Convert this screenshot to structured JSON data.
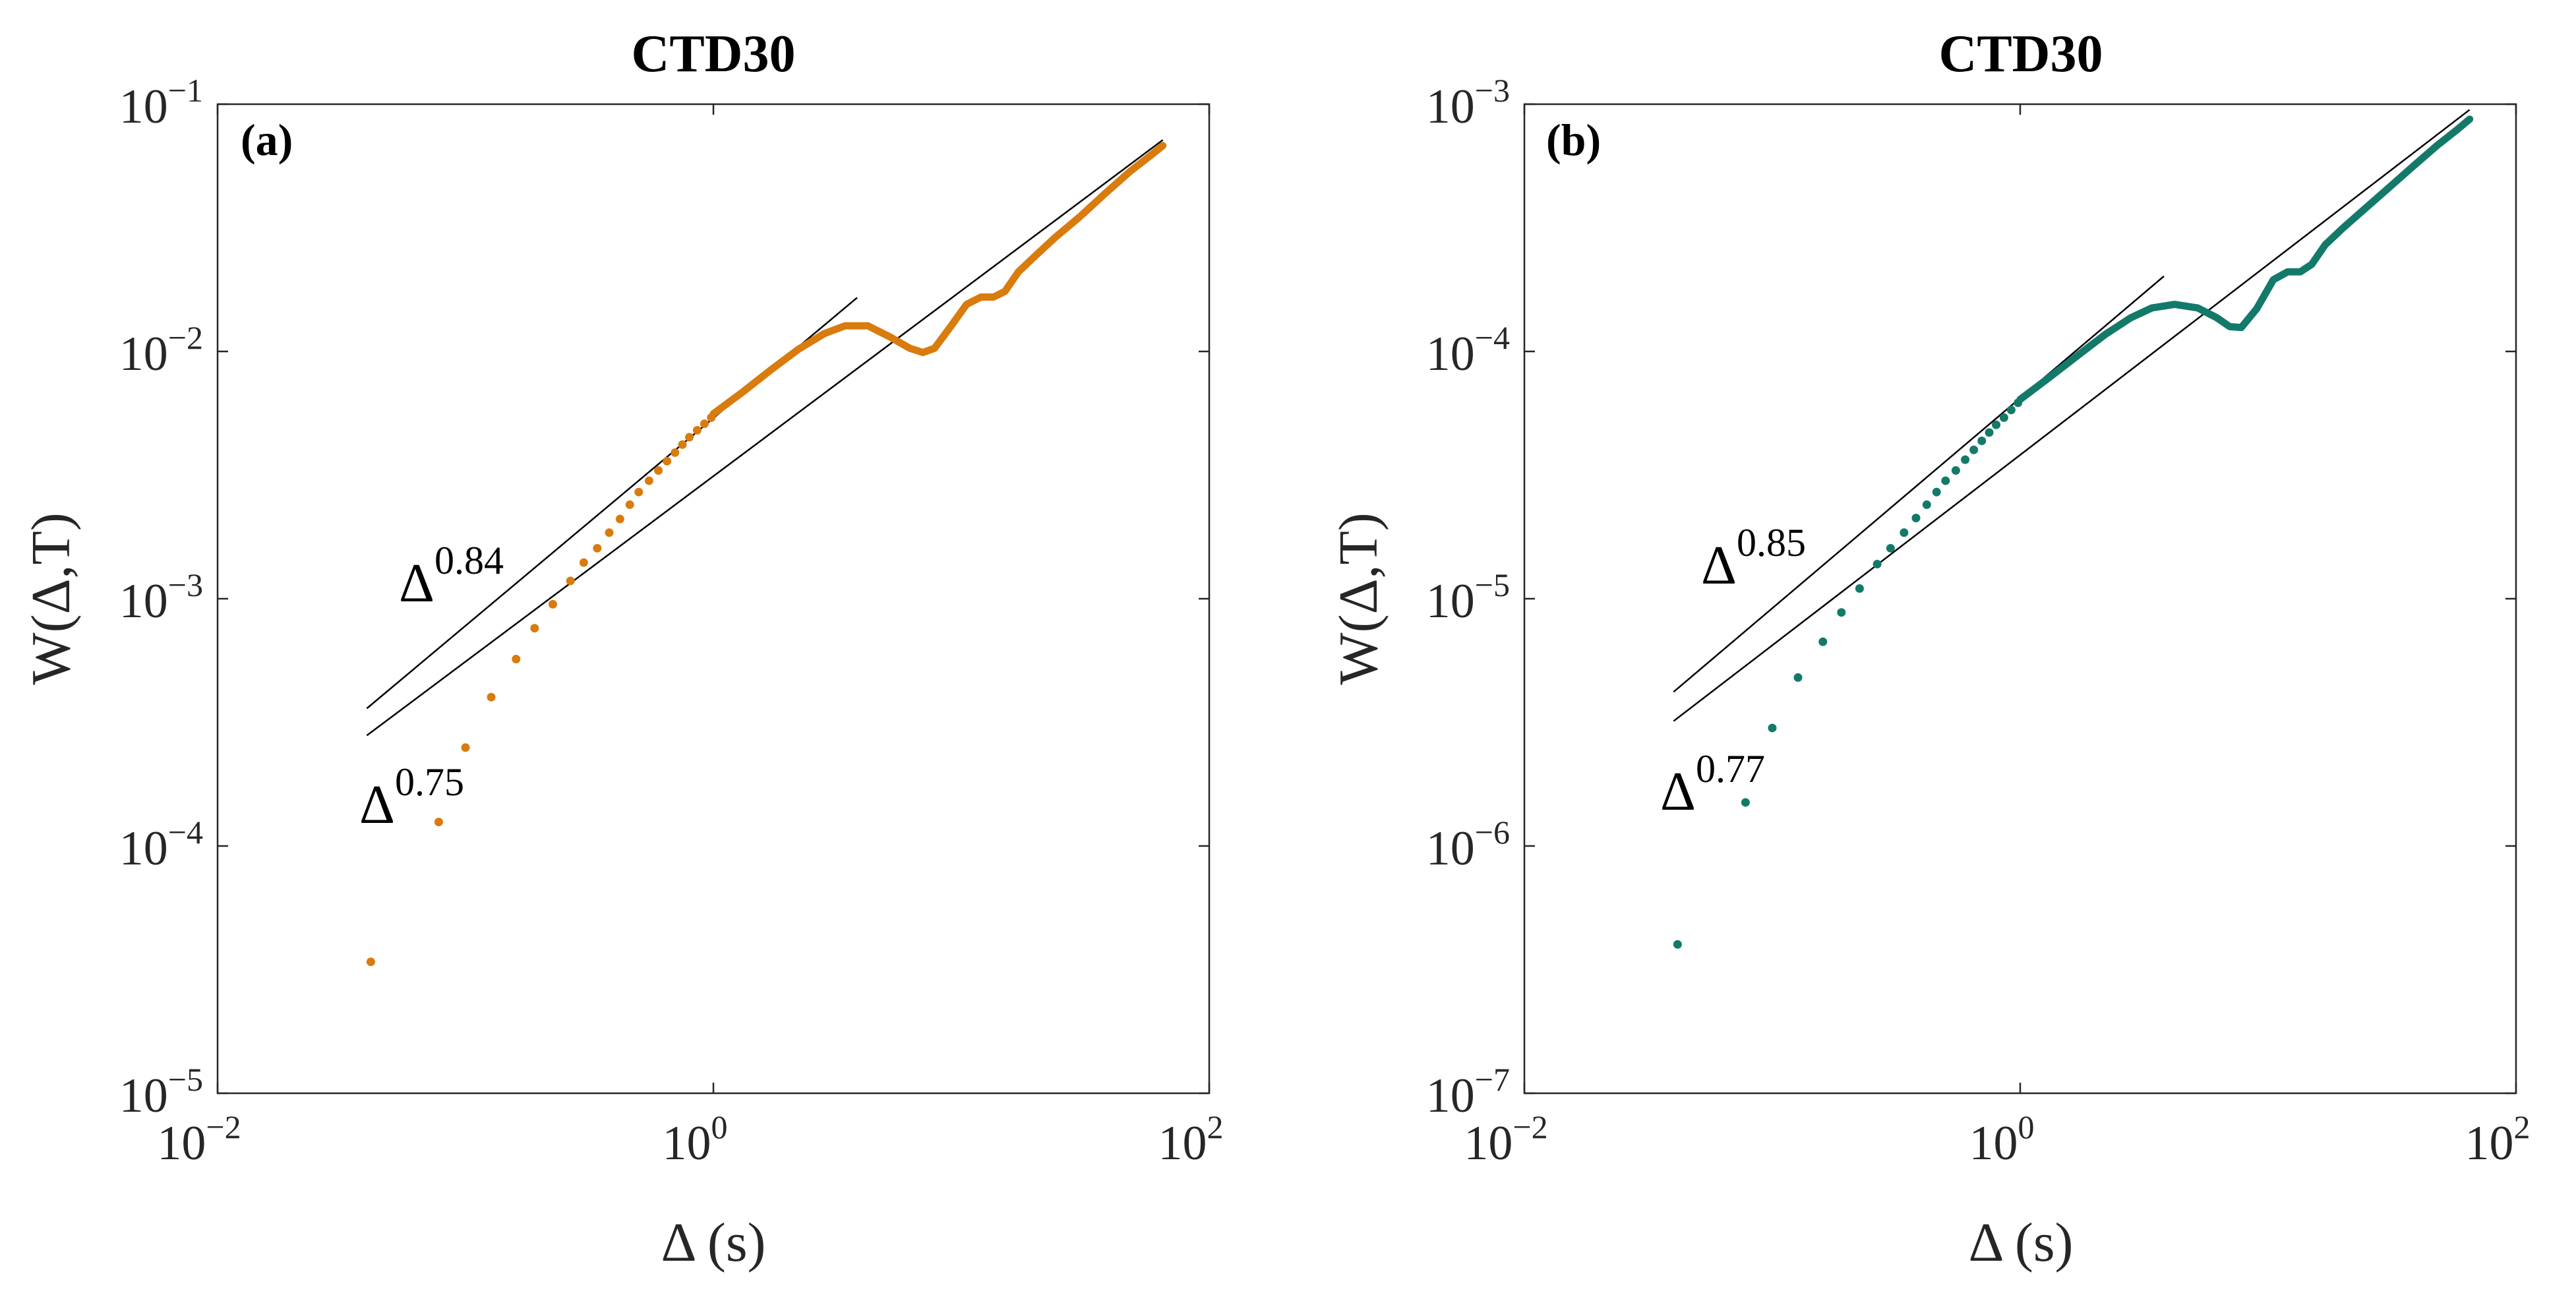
{
  "chart_data": [
    {
      "type": "scatter",
      "title": "CTD30",
      "panel_label": "(a)",
      "xlabel": "Δ (s)",
      "ylabel": "W(Δ,T)",
      "xscale": "log",
      "yscale": "log",
      "xlim": [
        0.01,
        100
      ],
      "ylim": [
        1e-05,
        0.1
      ],
      "x_ticks": [
        {
          "base": "10",
          "exp": "−2"
        },
        {
          "base": "10",
          "exp": "0"
        },
        {
          "base": "10",
          "exp": "2"
        }
      ],
      "y_ticks": [
        {
          "base": "10",
          "exp": "−5"
        },
        {
          "base": "10",
          "exp": "−4"
        },
        {
          "base": "10",
          "exp": "−3"
        },
        {
          "base": "10",
          "exp": "−2"
        },
        {
          "base": "10",
          "exp": "−1"
        }
      ],
      "series_color": "#d97b0d",
      "points": [
        [
          0.0415,
          3.4e-05
        ],
        [
          0.078,
          0.000125
        ],
        [
          0.1,
          0.00025
        ],
        [
          0.127,
          0.0004
        ],
        [
          0.16,
          0.00057
        ],
        [
          0.19,
          0.00076
        ],
        [
          0.225,
          0.00095
        ],
        [
          0.265,
          0.00118
        ],
        [
          0.3,
          0.0014
        ],
        [
          0.34,
          0.0016
        ],
        [
          0.38,
          0.00185
        ],
        [
          0.42,
          0.0021
        ],
        [
          0.46,
          0.0024
        ],
        [
          0.5,
          0.0027
        ],
        [
          0.55,
          0.003
        ],
        [
          0.6,
          0.0033
        ],
        [
          0.65,
          0.0036
        ],
        [
          0.7,
          0.0039
        ],
        [
          0.75,
          0.0042
        ],
        [
          0.8,
          0.0045
        ],
        [
          0.86,
          0.0048
        ],
        [
          0.92,
          0.0051
        ],
        [
          0.98,
          0.0054
        ]
      ],
      "curve": [
        [
          1.0,
          0.0056
        ],
        [
          1.3,
          0.0068
        ],
        [
          1.7,
          0.0084
        ],
        [
          2.2,
          0.0102
        ],
        [
          2.8,
          0.0118
        ],
        [
          3.4,
          0.0127
        ],
        [
          4.2,
          0.0127
        ],
        [
          5.2,
          0.0114
        ],
        [
          6.2,
          0.0103
        ],
        [
          7.0,
          0.0099
        ],
        [
          7.8,
          0.0103
        ],
        [
          9.0,
          0.0125
        ],
        [
          10.5,
          0.0155
        ],
        [
          12.0,
          0.0166
        ],
        [
          13.5,
          0.0166
        ],
        [
          15.0,
          0.0175
        ],
        [
          17.0,
          0.021
        ],
        [
          20.0,
          0.0245
        ],
        [
          24.0,
          0.029
        ],
        [
          30.0,
          0.035
        ],
        [
          38.0,
          0.0435
        ],
        [
          48.0,
          0.0535
        ],
        [
          58.0,
          0.062
        ],
        [
          65.0,
          0.068
        ]
      ],
      "fits": [
        {
          "label_base": "Δ",
          "label_exp": "0.84",
          "exponent": 0.84,
          "x_range": [
            0.04,
            3.8
          ],
          "y_start": 0.00036
        },
        {
          "label_base": "Δ",
          "label_exp": "0.75",
          "exponent": 0.75,
          "x_range": [
            0.04,
            65.0
          ],
          "y_start": 0.00028
        }
      ]
    },
    {
      "type": "scatter",
      "title": "CTD30",
      "panel_label": "(b)",
      "xlabel": "Δ (s)",
      "ylabel": "W(Δ,T)",
      "xscale": "log",
      "yscale": "log",
      "xlim": [
        0.01,
        100
      ],
      "ylim": [
        1e-07,
        0.001
      ],
      "x_ticks": [
        {
          "base": "10",
          "exp": "−2"
        },
        {
          "base": "10",
          "exp": "0"
        },
        {
          "base": "10",
          "exp": "2"
        }
      ],
      "y_ticks": [
        {
          "base": "10",
          "exp": "−7"
        },
        {
          "base": "10",
          "exp": "−6"
        },
        {
          "base": "10",
          "exp": "−5"
        },
        {
          "base": "10",
          "exp": "−4"
        },
        {
          "base": "10",
          "exp": "−3"
        }
      ],
      "series_color": "#137a6a",
      "points": [
        [
          0.0415,
          4e-07
        ],
        [
          0.078,
          1.5e-06
        ],
        [
          0.1,
          3e-06
        ],
        [
          0.127,
          4.8e-06
        ],
        [
          0.16,
          6.7e-06
        ],
        [
          0.19,
          8.8e-06
        ],
        [
          0.225,
          1.1e-05
        ],
        [
          0.265,
          1.38e-05
        ],
        [
          0.3,
          1.6e-05
        ],
        [
          0.34,
          1.85e-05
        ],
        [
          0.38,
          2.12e-05
        ],
        [
          0.42,
          2.4e-05
        ],
        [
          0.46,
          2.7e-05
        ],
        [
          0.5,
          3e-05
        ],
        [
          0.55,
          3.3e-05
        ],
        [
          0.6,
          3.65e-05
        ],
        [
          0.65,
          4e-05
        ],
        [
          0.7,
          4.35e-05
        ],
        [
          0.75,
          4.7e-05
        ],
        [
          0.8,
          5.05e-05
        ],
        [
          0.86,
          5.4e-05
        ],
        [
          0.92,
          5.8e-05
        ],
        [
          0.98,
          6.2e-05
        ]
      ],
      "curve": [
        [
          1.0,
          6.4e-05
        ],
        [
          1.3,
          7.8e-05
        ],
        [
          1.7,
          9.6e-05
        ],
        [
          2.2,
          0.000117
        ],
        [
          2.8,
          0.000137
        ],
        [
          3.4,
          0.00015
        ],
        [
          4.2,
          0.000155
        ],
        [
          5.2,
          0.00015
        ],
        [
          6.2,
          0.000137
        ],
        [
          7.0,
          0.000126
        ],
        [
          7.8,
          0.000125
        ],
        [
          9.0,
          0.000149
        ],
        [
          10.5,
          0.000195
        ],
        [
          12.0,
          0.00021
        ],
        [
          13.5,
          0.00021
        ],
        [
          15.0,
          0.000225
        ],
        [
          17.0,
          0.00027
        ],
        [
          20.0,
          0.000315
        ],
        [
          24.0,
          0.00037
        ],
        [
          30.0,
          0.00045
        ],
        [
          38.0,
          0.000555
        ],
        [
          48.0,
          0.00068
        ],
        [
          58.0,
          0.00079
        ],
        [
          65.0,
          0.00087
        ]
      ],
      "fits": [
        {
          "label_base": "Δ",
          "label_exp": "0.85",
          "exponent": 0.85,
          "x_range": [
            0.04,
            3.8
          ],
          "y_start": 4.2e-06
        },
        {
          "label_base": "Δ",
          "label_exp": "0.77",
          "exponent": 0.77,
          "x_range": [
            0.04,
            65.0
          ],
          "y_start": 3.2e-06
        }
      ]
    }
  ]
}
